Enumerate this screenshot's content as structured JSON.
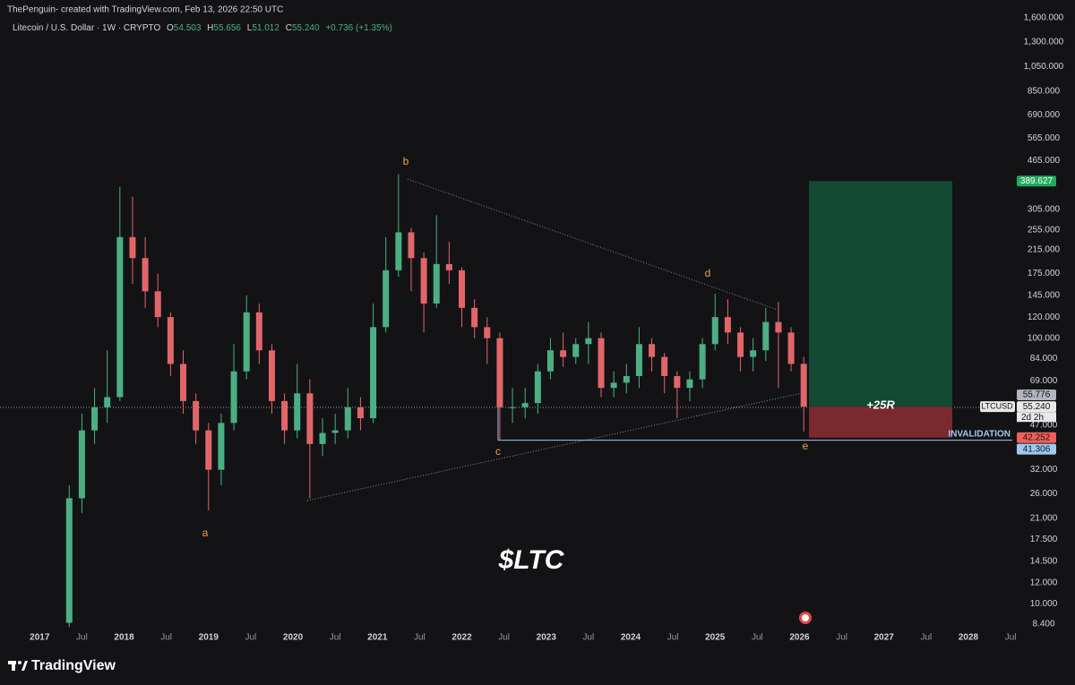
{
  "header": {
    "credit": "ThePenguin- created with TradingView.com, Feb 13, 2026 22:50 UTC",
    "symbol": "Litecoin / U.S. Dollar · 1W · CRYPTO",
    "open_key": "O",
    "open": "54.503",
    "high_key": "H",
    "high": "55.656",
    "low_key": "L",
    "low": "51.012",
    "close_key": "C",
    "close": "55.240",
    "change": "+0.736 (+1.35%)"
  },
  "footer": {
    "brand": "TradingView"
  },
  "chart_data": {
    "type": "candlestick",
    "title": "$LTC",
    "log_scale": true,
    "grid": false,
    "up_color": "#4caf83",
    "down_color": "#e0666a",
    "x": [
      2017.35,
      2017.5,
      2017.65,
      2017.8,
      2017.95,
      2018.1,
      2018.25,
      2018.4,
      2018.55,
      2018.7,
      2018.85,
      2019.0,
      2019.15,
      2019.3,
      2019.45,
      2019.6,
      2019.75,
      2019.9,
      2020.05,
      2020.2,
      2020.35,
      2020.5,
      2020.65,
      2020.8,
      2020.95,
      2021.1,
      2021.25,
      2021.4,
      2021.55,
      2021.7,
      2021.85,
      2022.0,
      2022.15,
      2022.3,
      2022.45,
      2022.6,
      2022.75,
      2022.9,
      2023.05,
      2023.2,
      2023.35,
      2023.5,
      2023.65,
      2023.8,
      2023.95,
      2024.1,
      2024.25,
      2024.4,
      2024.55,
      2024.7,
      2024.85,
      2025.0,
      2025.15,
      2025.3,
      2025.45,
      2025.6,
      2025.75,
      2025.9,
      2026.05
    ],
    "ohlc": {
      "open": [
        8.5,
        25,
        45,
        55,
        60,
        240,
        200,
        150,
        120,
        80,
        58,
        45,
        32,
        48,
        75,
        125,
        90,
        58,
        45,
        62,
        40,
        44,
        45,
        55,
        50,
        110,
        180,
        250,
        200,
        135,
        190,
        180,
        130,
        110,
        100,
        55,
        55,
        57,
        75,
        90,
        85,
        95,
        100,
        65,
        68,
        72,
        95,
        85,
        72,
        65,
        70,
        95,
        120,
        105,
        85,
        90,
        115,
        105,
        80
      ],
      "high": [
        28,
        52,
        65,
        90,
        370,
        340,
        240,
        175,
        125,
        90,
        62,
        48,
        52,
        95,
        145,
        135,
        95,
        62,
        80,
        70,
        50,
        52,
        65,
        60,
        135,
        240,
        413,
        260,
        210,
        290,
        230,
        185,
        140,
        120,
        105,
        65,
        65,
        80,
        100,
        105,
        100,
        115,
        105,
        75,
        80,
        110,
        100,
        88,
        75,
        75,
        100,
        147,
        140,
        110,
        100,
        130,
        137,
        110,
        85
      ],
      "low": [
        8.2,
        22,
        40,
        48,
        58,
        160,
        130,
        110,
        72,
        52,
        40,
        22.5,
        28,
        45,
        70,
        80,
        52,
        40,
        42,
        25,
        36,
        40,
        42,
        45,
        48,
        105,
        170,
        150,
        105,
        130,
        160,
        110,
        100,
        80,
        41.3,
        48,
        50,
        52,
        70,
        78,
        80,
        80,
        60,
        60,
        62,
        65,
        75,
        62,
        50,
        58,
        65,
        90,
        95,
        75,
        75,
        82,
        65,
        75,
        44.5
      ],
      "close": [
        25,
        45,
        55,
        60,
        240,
        200,
        150,
        120,
        80,
        58,
        45,
        32,
        48,
        75,
        125,
        90,
        58,
        45,
        62,
        40,
        44,
        45,
        55,
        50,
        110,
        180,
        250,
        200,
        135,
        190,
        180,
        130,
        110,
        100,
        55,
        55,
        57,
        75,
        90,
        85,
        95,
        100,
        65,
        68,
        72,
        95,
        85,
        72,
        65,
        70,
        95,
        120,
        105,
        85,
        90,
        115,
        105,
        80,
        55.24
      ]
    },
    "xlim": [
      2016.53,
      2028.52
    ],
    "xticks": [
      2017,
      {
        "value": 2017.5,
        "label": "Jul"
      },
      2018,
      {
        "value": 2018.5,
        "label": "Jul"
      },
      2019,
      {
        "value": 2019.5,
        "label": "Jul"
      },
      2020,
      {
        "value": 2020.5,
        "label": "Jul"
      },
      2021,
      {
        "value": 2021.5,
        "label": "Jul"
      },
      2022,
      {
        "value": 2022.5,
        "label": "Jul"
      },
      2023,
      {
        "value": 2023.5,
        "label": "Jul"
      },
      2024,
      {
        "value": 2024.5,
        "label": "Jul"
      },
      2025,
      {
        "value": 2025.5,
        "label": "Jul"
      },
      2026,
      {
        "value": 2026.5,
        "label": "Jul"
      },
      2027,
      {
        "value": 2027.5,
        "label": "Jul"
      },
      2028,
      {
        "value": 2028.5,
        "label": "Jul"
      }
    ],
    "ylim": [
      7.9,
      1730
    ],
    "yticks": [
      {
        "value": 1600,
        "label": "1,600.000"
      },
      {
        "value": 1300,
        "label": "1,300.000"
      },
      {
        "value": 1050,
        "label": "1,050.000"
      },
      {
        "value": 850,
        "label": "850.000"
      },
      {
        "value": 690,
        "label": "690.000"
      },
      {
        "value": 565,
        "label": "565.000"
      },
      {
        "value": 465,
        "label": "465.000"
      },
      {
        "value": 305,
        "label": "305.000"
      },
      {
        "value": 255,
        "label": "255.000"
      },
      {
        "value": 215,
        "label": "215.000"
      },
      {
        "value": 175,
        "label": "175.000"
      },
      {
        "value": 145,
        "label": "145.000"
      },
      {
        "value": 120,
        "label": "120.000"
      },
      {
        "value": 100,
        "label": "100.000"
      },
      {
        "value": 84,
        "label": "84.000"
      },
      {
        "value": 69,
        "label": "69.000"
      },
      {
        "value": 47,
        "label": "47.000"
      },
      {
        "value": 32,
        "label": "32.000"
      },
      {
        "value": 26,
        "label": "26.000"
      },
      {
        "value": 21,
        "label": "21.000"
      },
      {
        "value": 17.5,
        "label": "17.500"
      },
      {
        "value": 14.5,
        "label": "14.500"
      },
      {
        "value": 12,
        "label": "12.000"
      },
      {
        "value": 10,
        "label": "10.000"
      },
      {
        "value": 8.4,
        "label": "8.400"
      }
    ],
    "price_labels": [
      {
        "value": 389.627,
        "label": "389.627",
        "color": "#22ab5b"
      },
      {
        "value": 55.776,
        "label": "55.776",
        "color": "#b2b5be"
      },
      {
        "value": 55.24,
        "label": "55.240",
        "color": "#e8e8e8"
      },
      {
        "value": 42.252,
        "label": "42.252",
        "color": "#f0605a"
      },
      {
        "value": 41.306,
        "label": "41.306",
        "color": "#9ec9f0"
      }
    ],
    "last_price": {
      "symbol": "LTCUSD",
      "countdown": "2d 2h"
    },
    "position": {
      "label": "+25R",
      "target_color": "#124a33",
      "stop_color": "#7a2a2e"
    },
    "invalidation": {
      "label": "INVALIDATION",
      "color": "#9ec9f0"
    },
    "wave_labels": [
      "a",
      "b",
      "c",
      "d",
      "e"
    ]
  }
}
